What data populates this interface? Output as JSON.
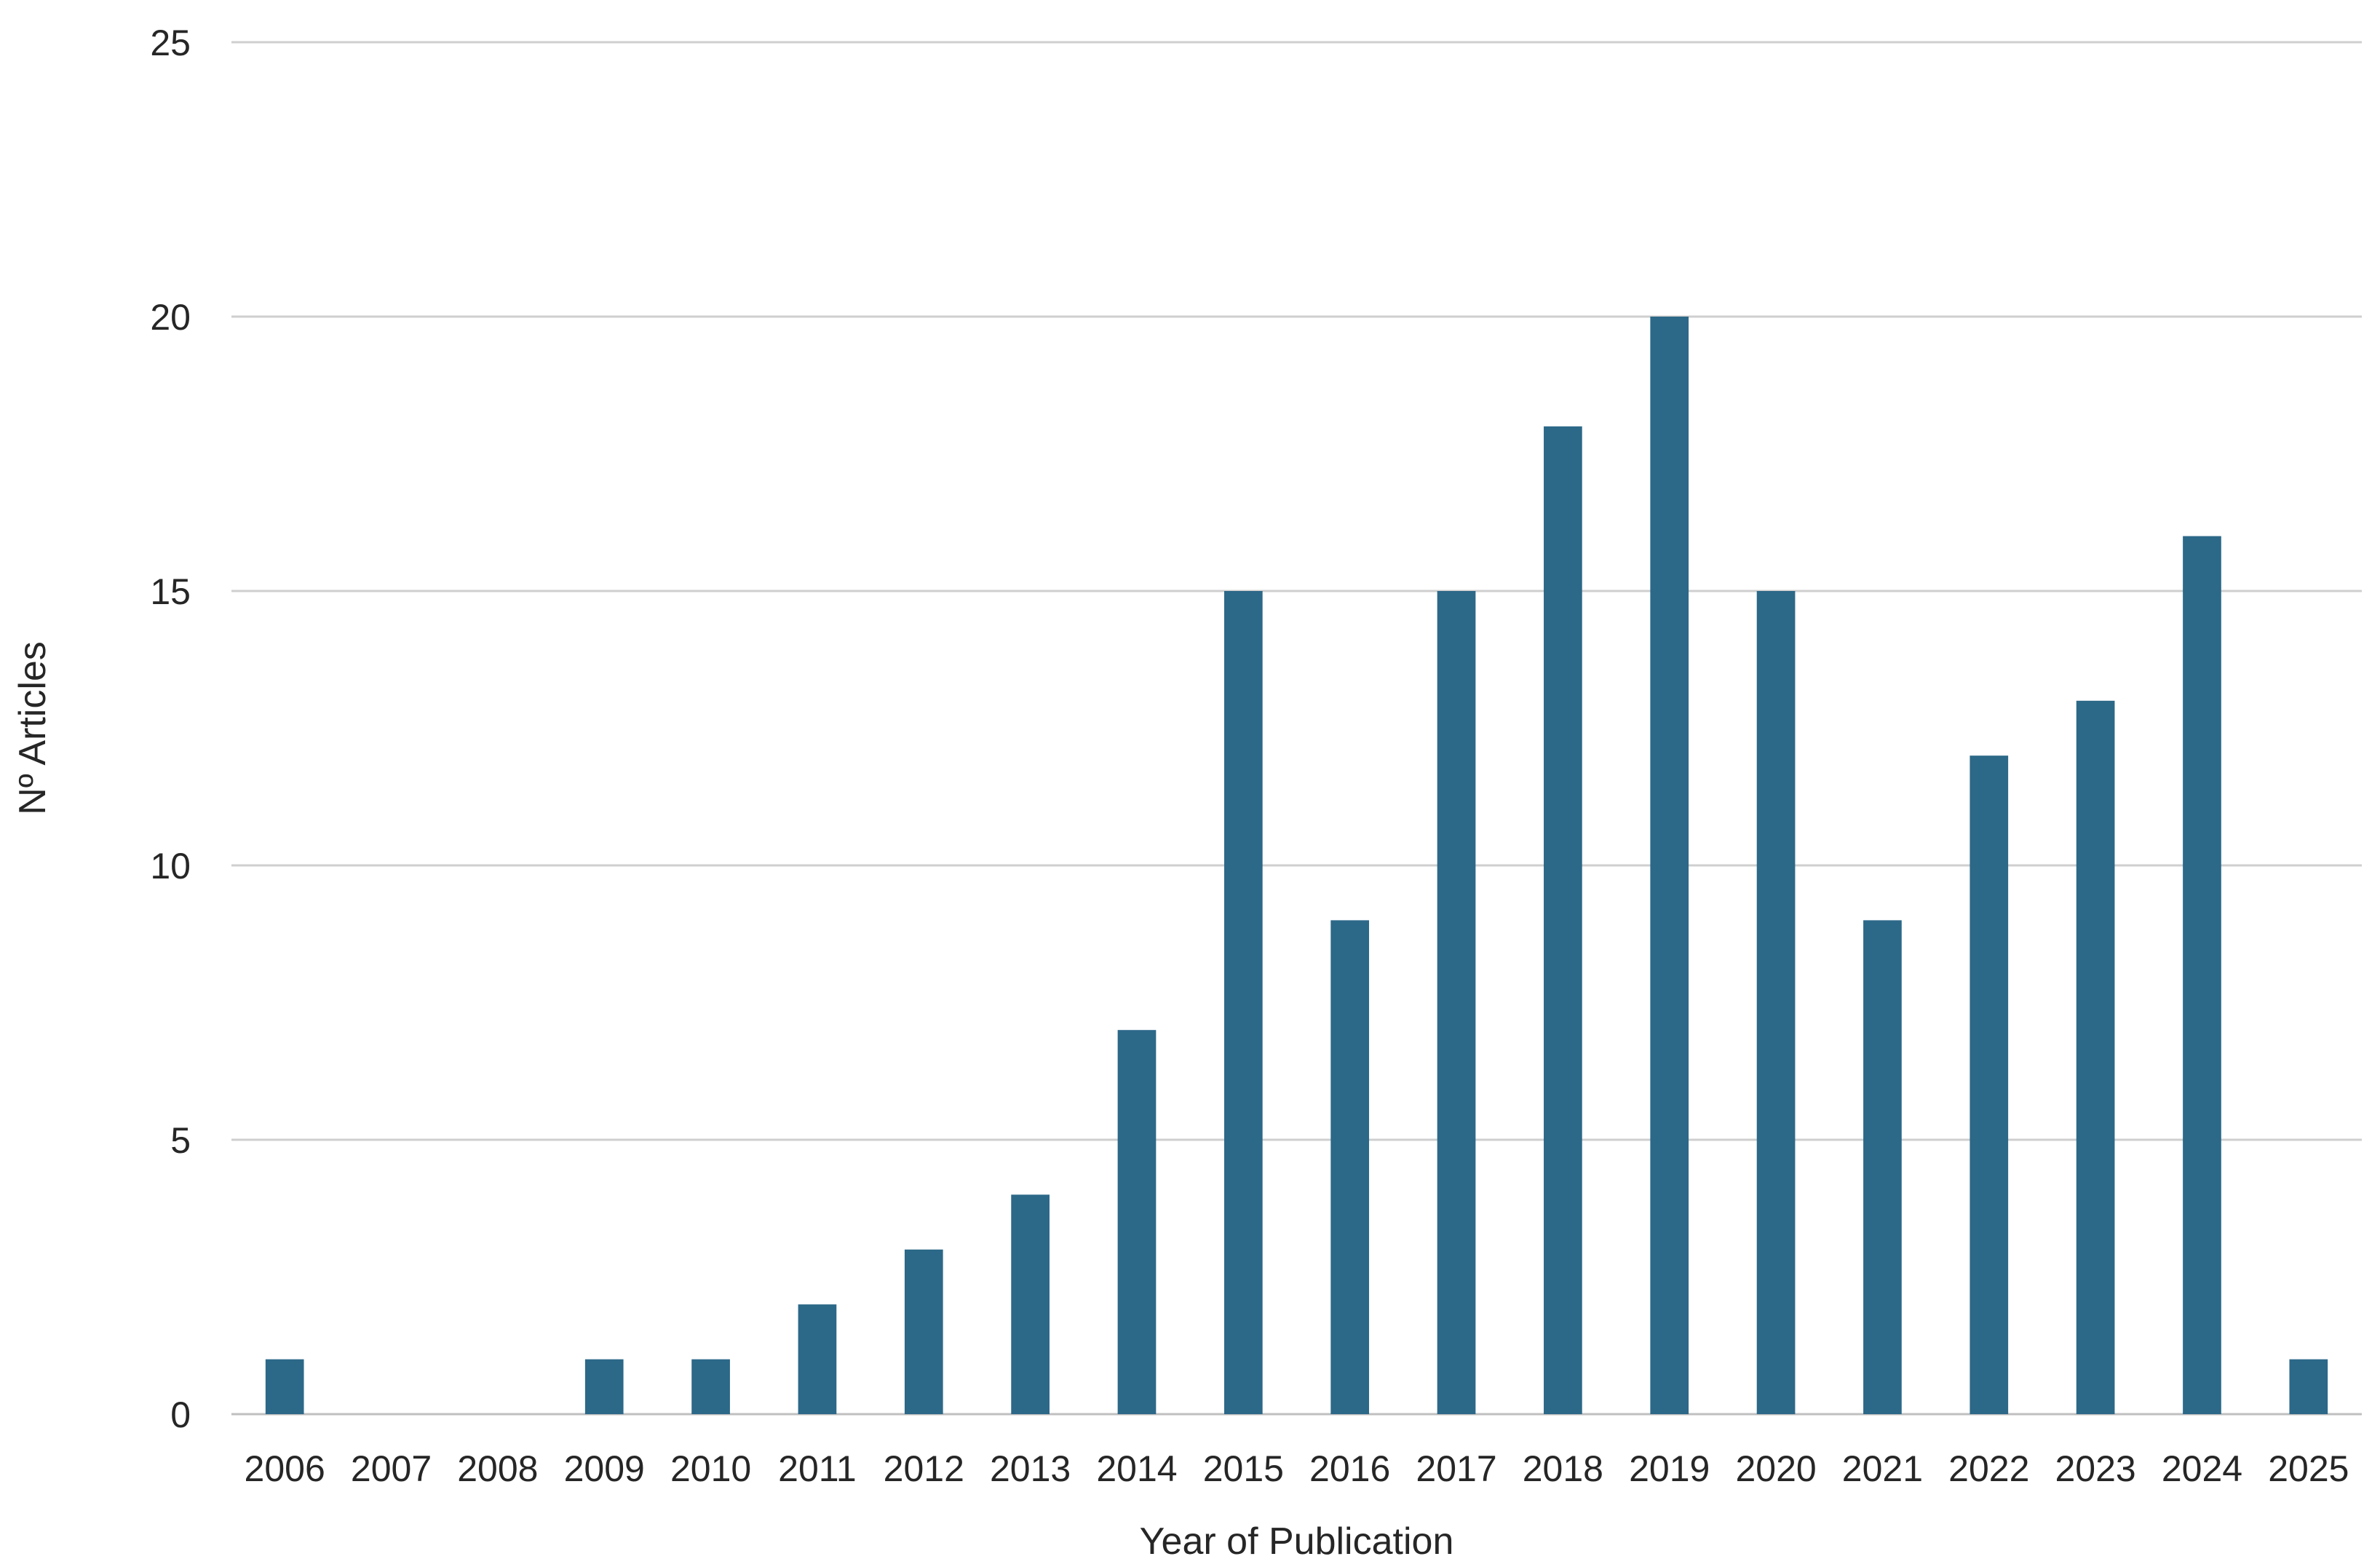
{
  "chart_data": {
    "type": "bar",
    "title": "",
    "xlabel": "Year of Publication",
    "ylabel": "Nº Articles",
    "categories": [
      "2006",
      "2007",
      "2008",
      "2009",
      "2010",
      "2011",
      "2012",
      "2013",
      "2014",
      "2015",
      "2016",
      "2017",
      "2018",
      "2019",
      "2020",
      "2021",
      "2022",
      "2023",
      "2024",
      "2025"
    ],
    "series": [
      {
        "values": [
          1,
          0,
          0,
          1,
          1,
          2,
          3,
          4,
          7,
          15,
          9,
          15,
          18,
          20,
          15,
          9,
          12,
          13,
          16,
          1
        ]
      }
    ],
    "ylim": [
      0,
      25
    ],
    "yticks": [
      "0",
      "5",
      "10",
      "15",
      "20",
      "25"
    ],
    "grid": true,
    "legend": "none",
    "colors": {
      "bar": "#2c6888",
      "grid": "#cfcfcf",
      "text": "#262626"
    }
  }
}
